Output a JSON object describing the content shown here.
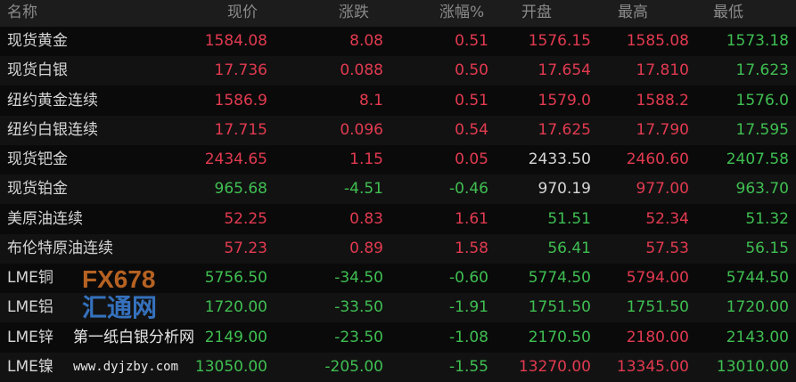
{
  "headers": [
    "名称",
    "现价",
    "涨跌",
    "涨幅%",
    "开盘",
    "最高",
    "最低"
  ],
  "rows": [
    {
      "name": "现货黄金",
      "v": [
        "1584.08",
        "8.08",
        "0.51",
        "1576.15",
        "1585.08",
        "1573.18"
      ],
      "c": [
        "up",
        "up",
        "up",
        "up",
        "up",
        "dn"
      ]
    },
    {
      "name": "现货白银",
      "v": [
        "17.736",
        "0.088",
        "0.50",
        "17.654",
        "17.810",
        "17.623"
      ],
      "c": [
        "up",
        "up",
        "up",
        "up",
        "up",
        "dn"
      ]
    },
    {
      "name": "纽约黄金连续",
      "v": [
        "1586.9",
        "8.1",
        "0.51",
        "1579.0",
        "1588.2",
        "1576.0"
      ],
      "c": [
        "up",
        "up",
        "up",
        "up",
        "up",
        "dn"
      ]
    },
    {
      "name": "纽约白银连续",
      "v": [
        "17.715",
        "0.096",
        "0.54",
        "17.625",
        "17.790",
        "17.595"
      ],
      "c": [
        "up",
        "up",
        "up",
        "up",
        "up",
        "dn"
      ]
    },
    {
      "name": "现货钯金",
      "v": [
        "2434.65",
        "1.15",
        "0.05",
        "2433.50",
        "2460.60",
        "2407.58"
      ],
      "c": [
        "up",
        "up",
        "up",
        "eq",
        "up",
        "dn"
      ]
    },
    {
      "name": "现货铂金",
      "v": [
        "965.68",
        "-4.51",
        "-0.46",
        "970.19",
        "977.00",
        "963.70"
      ],
      "c": [
        "dn",
        "dn",
        "dn",
        "eq",
        "up",
        "dn"
      ]
    },
    {
      "name": "美原油连续",
      "v": [
        "52.25",
        "0.83",
        "1.61",
        "51.51",
        "52.34",
        "51.32"
      ],
      "c": [
        "up",
        "up",
        "up",
        "dn",
        "up",
        "dn"
      ]
    },
    {
      "name": "布伦特原油连续",
      "v": [
        "57.23",
        "0.89",
        "1.58",
        "56.41",
        "57.53",
        "56.15"
      ],
      "c": [
        "up",
        "up",
        "up",
        "dn",
        "up",
        "dn"
      ]
    },
    {
      "name": "LME铜",
      "v": [
        "5756.50",
        "-34.50",
        "-0.60",
        "5774.50",
        "5794.00",
        "5744.50"
      ],
      "c": [
        "dn",
        "dn",
        "dn",
        "dn",
        "up",
        "dn"
      ]
    },
    {
      "name": "LME铝",
      "v": [
        "1720.00",
        "-33.50",
        "-1.91",
        "1751.50",
        "1751.50",
        "1720.00"
      ],
      "c": [
        "dn",
        "dn",
        "dn",
        "dn",
        "dn",
        "dn"
      ]
    },
    {
      "name": "LME锌",
      "v": [
        "2149.00",
        "-23.50",
        "-1.08",
        "2170.50",
        "2180.00",
        "2143.00"
      ],
      "c": [
        "dn",
        "dn",
        "dn",
        "dn",
        "up",
        "dn"
      ]
    },
    {
      "name": "LME镍",
      "v": [
        "13050.00",
        "-205.00",
        "-1.55",
        "13270.00",
        "13345.00",
        "13010.00"
      ],
      "c": [
        "dn",
        "dn",
        "dn",
        "up",
        "up",
        "dn"
      ]
    }
  ],
  "watermark": {
    "line1": "第一纸白银分析网",
    "line2": "www.dyjzby.com",
    "logo": "FX678",
    "logo_cn": "汇通网"
  }
}
